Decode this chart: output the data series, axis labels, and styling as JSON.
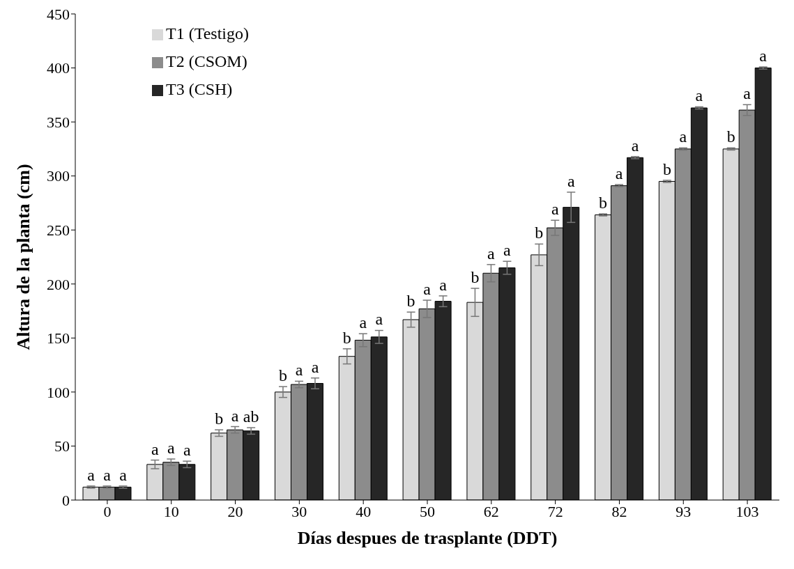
{
  "chart_data": {
    "type": "bar",
    "xlabel": "Días despues de trasplante (DDT)",
    "ylabel": "Altura de la planta (cm)",
    "categories": [
      "0",
      "10",
      "20",
      "30",
      "40",
      "50",
      "62",
      "72",
      "82",
      "93",
      "103"
    ],
    "series": [
      {
        "name": "T1 (Testigo)",
        "color": "#d9d9d9",
        "values": [
          12,
          33,
          62,
          100,
          133,
          167,
          183,
          227,
          264,
          295,
          325
        ],
        "errors": [
          1,
          4,
          3,
          5,
          7,
          7,
          13,
          10,
          1,
          1,
          1
        ],
        "value_labels": [
          "a",
          "a",
          "b",
          "b",
          "b",
          "b",
          "b",
          "b",
          "b",
          "b",
          "b"
        ]
      },
      {
        "name": "T2 (CSOM)",
        "color": "#8c8c8c",
        "values": [
          12,
          35,
          65,
          107,
          148,
          177,
          210,
          252,
          291,
          325,
          361
        ],
        "errors": [
          1,
          3,
          3,
          3,
          6,
          8,
          8,
          7,
          1,
          1,
          5
        ],
        "value_labels": [
          "a",
          "a",
          "a",
          "a",
          "a",
          "a",
          "a",
          "a",
          "a",
          "a",
          "a"
        ]
      },
      {
        "name": "T3 (CSH)",
        "color": "#262626",
        "values": [
          12,
          33,
          64,
          108,
          151,
          184,
          215,
          271,
          317,
          363,
          400
        ],
        "errors": [
          1,
          3,
          3,
          5,
          6,
          5,
          6,
          14,
          1,
          1,
          1
        ],
        "value_labels": [
          "a",
          "a",
          "ab",
          "a",
          "a",
          "a",
          "a",
          "a",
          "a",
          "a",
          "a"
        ]
      }
    ],
    "ylim": [
      0,
      450
    ],
    "yticks": [
      0,
      50,
      100,
      150,
      200,
      250,
      300,
      350,
      400,
      450
    ],
    "grid": false,
    "legend": "top left"
  }
}
